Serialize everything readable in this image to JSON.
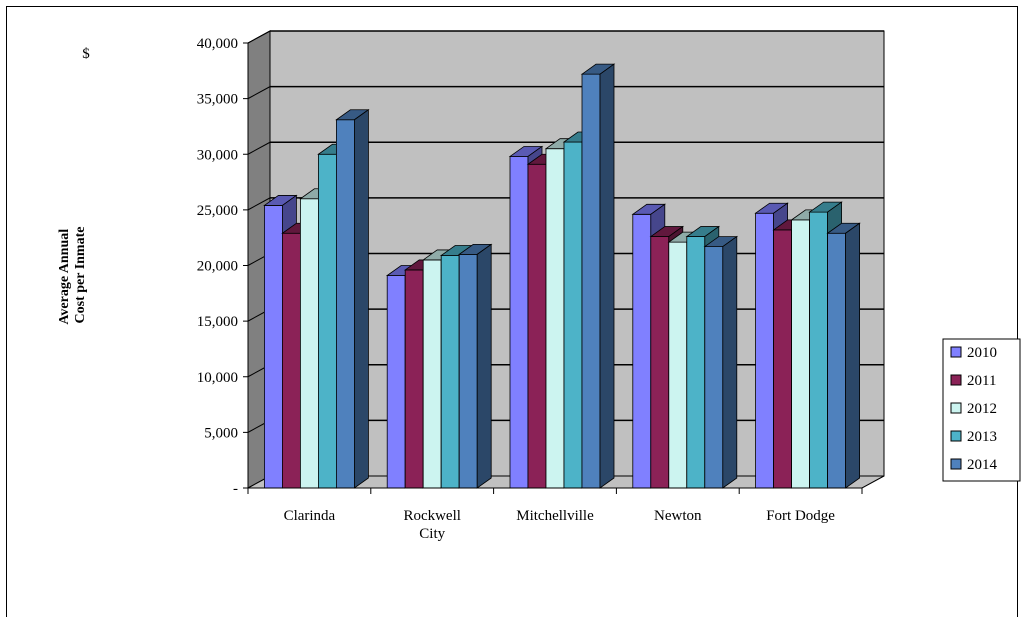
{
  "chart_data": {
    "type": "bar",
    "title": "",
    "unit_label": "$",
    "ylabel": "Average Annual Cost per Inmate",
    "ylabel_lines": [
      "Average Annual",
      "Cost per Inmate"
    ],
    "xlabel": "",
    "ylim": [
      0,
      40000
    ],
    "yticks": [
      0,
      5000,
      10000,
      15000,
      20000,
      25000,
      30000,
      35000,
      40000
    ],
    "ytick_labels": [
      "-",
      "5,000",
      "10,000",
      "15,000",
      "20,000",
      "25,000",
      "30,000",
      "35,000",
      "40,000"
    ],
    "grid": true,
    "legend": "right",
    "categories": [
      "Clarinda",
      "Rockwell City",
      "Mitchellville",
      "Newton",
      "Fort Dodge"
    ],
    "category_lines": [
      [
        "Clarinda"
      ],
      [
        "Rockwell",
        "City"
      ],
      [
        "Mitchellville"
      ],
      [
        "Newton"
      ],
      [
        "Fort Dodge"
      ]
    ],
    "series": [
      {
        "name": "2010",
        "color": "#8080ff",
        "values": [
          25400,
          19100,
          29800,
          24600,
          24700
        ]
      },
      {
        "name": "2011",
        "color": "#8b2257",
        "values": [
          22900,
          19600,
          29100,
          22600,
          23200
        ]
      },
      {
        "name": "2012",
        "color": "#ccf4f0",
        "values": [
          26000,
          20500,
          30500,
          22100,
          24100
        ]
      },
      {
        "name": "2013",
        "color": "#4db3c8",
        "values": [
          30000,
          20900,
          31100,
          22600,
          24800
        ]
      },
      {
        "name": "2014",
        "color": "#4f81bd",
        "values": [
          33100,
          21000,
          37200,
          21700,
          22900
        ]
      }
    ]
  }
}
